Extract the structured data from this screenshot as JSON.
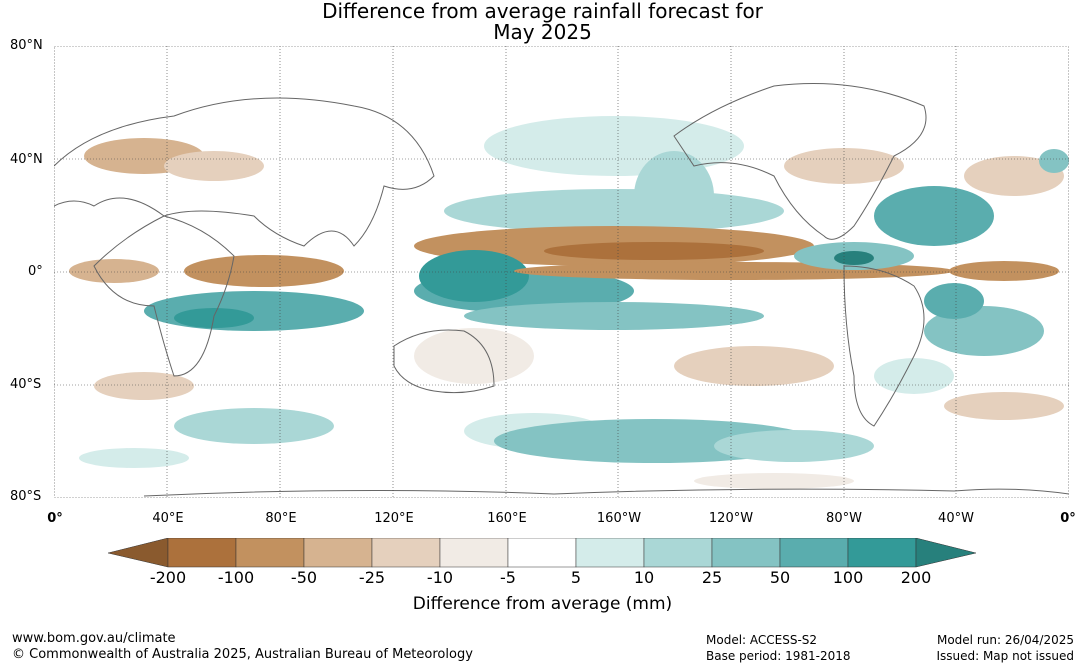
{
  "title_line1": "Difference from average rainfall forecast for",
  "title_line2": "May 2025",
  "lat_labels": [
    "80°N",
    "40°N",
    "0°",
    "40°S",
    "80°S"
  ],
  "lon_labels": [
    "0°",
    "40°E",
    "80°E",
    "120°E",
    "160°E",
    "160°W",
    "120°W",
    "80°W",
    "40°W",
    "0°"
  ],
  "legend": {
    "title": "Difference from average (mm)",
    "tick_labels": [
      "-200",
      "-100",
      "-50",
      "-25",
      "-10",
      "-5",
      "5",
      "10",
      "25",
      "50",
      "100",
      "200"
    ],
    "colors": {
      "below_min": "#8a5a2e",
      "minus200_minus100": "#ac713c",
      "minus100_minus50": "#c2915f",
      "minus50_minus25": "#d6b390",
      "minus25_minus10": "#e5d0bd",
      "minus10_minus5": "#f1ebe5",
      "minus5_5": "#ffffff",
      "5_10": "#d4ecea",
      "10_25": "#aad7d6",
      "25_50": "#84c3c3",
      "50_100": "#5aadae",
      "100_200": "#339a98",
      "above_max": "#27807c"
    }
  },
  "footer": {
    "url": "www.bom.gov.au/climate",
    "copyright": "© Commonwealth of Australia 2025, Australian Bureau of Meteorology",
    "model": "Model: ACCESS-S2",
    "base_period": "Base period: 1981-2018",
    "model_run": "Model run: 26/04/2025",
    "issued": "Issued: Map not issued"
  }
}
